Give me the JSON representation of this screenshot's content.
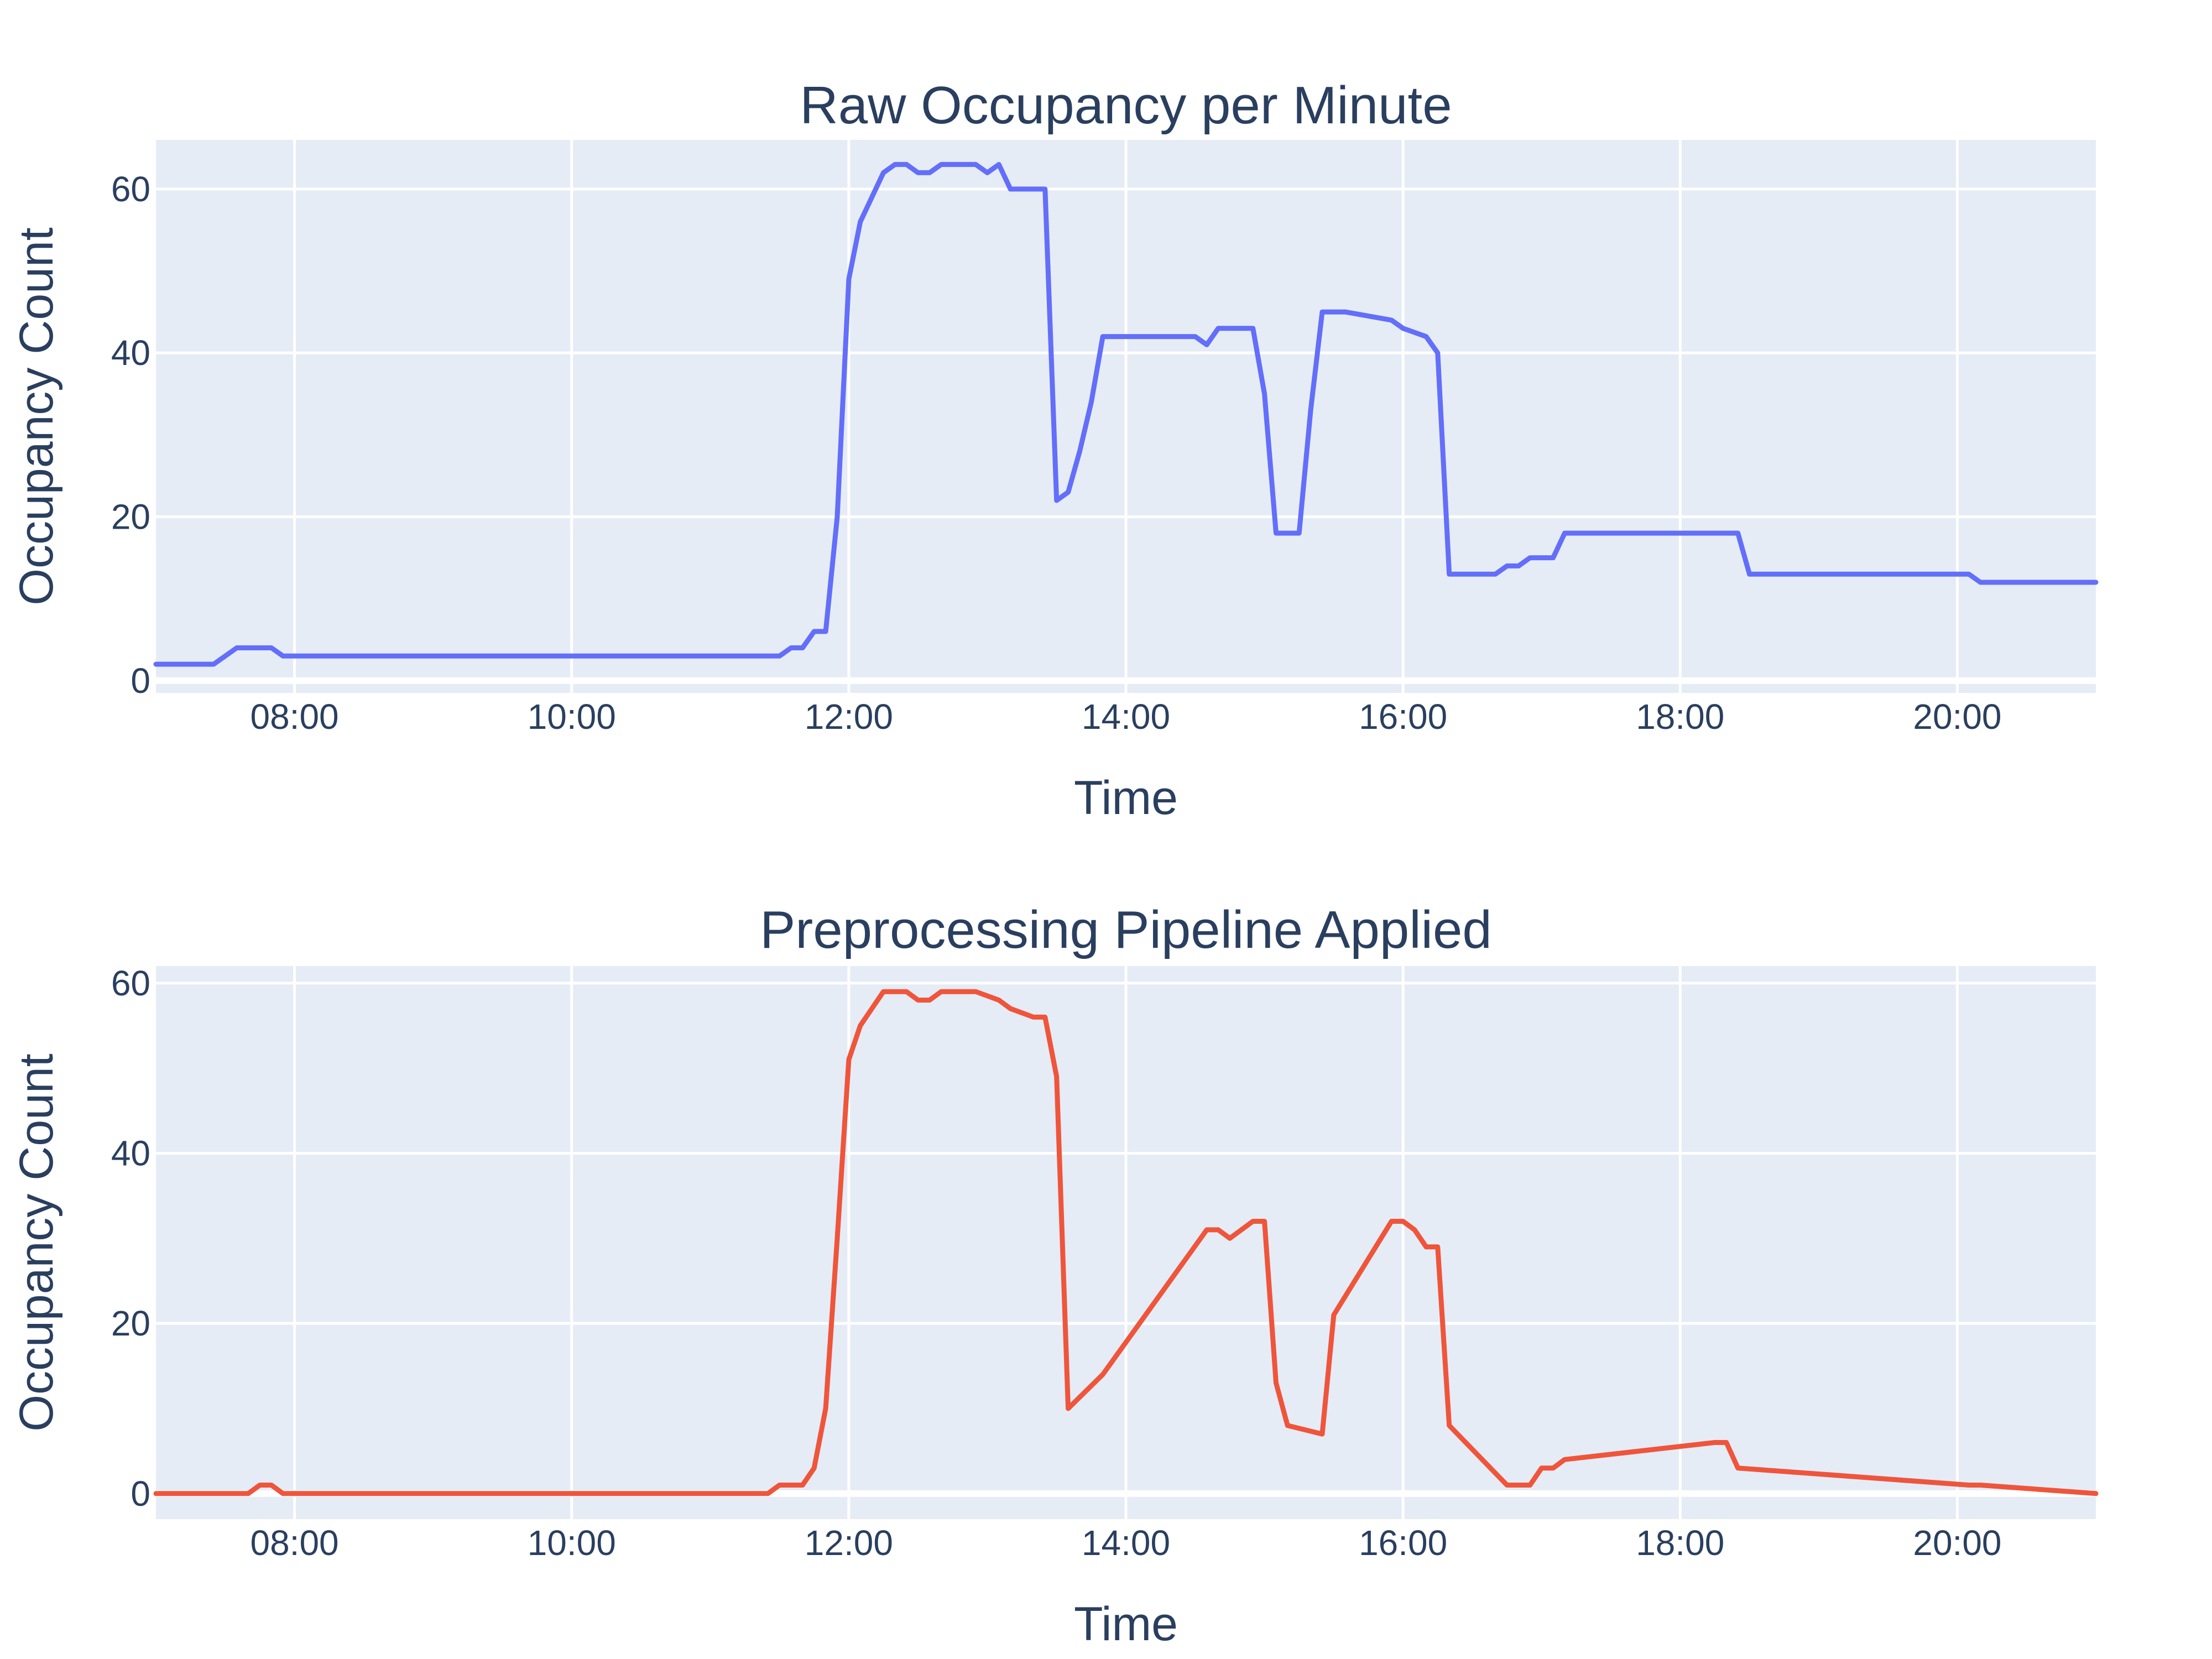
{
  "chart_data": [
    {
      "type": "line",
      "title": "Raw Occupancy per Minute",
      "xlabel": "Time",
      "ylabel": "Occupancy Count",
      "x_tick_labels": [
        "08:00",
        "10:00",
        "12:00",
        "14:00",
        "16:00",
        "18:00",
        "20:00"
      ],
      "y_tick_labels": [
        "0",
        "20",
        "40",
        "60"
      ],
      "xlim": [
        "07:00",
        "21:00"
      ],
      "ylim": [
        -1.5,
        66
      ],
      "grid": true,
      "color": "#636efa",
      "series": [
        {
          "x": [
            "07:00",
            "07:25",
            "07:35",
            "07:50",
            "07:55",
            "11:30",
            "11:35",
            "11:40",
            "11:45",
            "11:50",
            "11:55",
            "12:00",
            "12:05",
            "12:10",
            "12:15",
            "12:20",
            "12:25",
            "12:30",
            "12:35",
            "12:40",
            "12:45",
            "12:50",
            "12:55",
            "13:00",
            "13:05",
            "13:10",
            "13:25",
            "13:30",
            "13:35",
            "13:40",
            "13:45",
            "13:50",
            "14:00",
            "14:30",
            "14:35",
            "14:40",
            "14:55",
            "15:00",
            "15:05",
            "15:15",
            "15:20",
            "15:25",
            "15:35",
            "15:55",
            "16:00",
            "16:10",
            "16:15",
            "16:20",
            "16:40",
            "16:45",
            "16:50",
            "16:55",
            "17:05",
            "17:10",
            "18:25",
            "18:30",
            "20:05",
            "20:10",
            "21:00"
          ],
          "y": [
            2,
            2,
            4,
            4,
            3,
            3,
            4,
            4,
            6,
            6,
            20,
            49,
            56,
            59,
            62,
            63,
            63,
            62,
            62,
            63,
            63,
            63,
            63,
            62,
            63,
            60,
            60,
            22,
            23,
            28,
            34,
            42,
            42,
            42,
            41,
            43,
            43,
            35,
            18,
            18,
            33,
            45,
            45,
            44,
            43,
            42,
            40,
            13,
            13,
            14,
            14,
            15,
            15,
            18,
            18,
            13,
            13,
            12,
            12
          ]
        }
      ]
    },
    {
      "type": "line",
      "title": "Preprocessing Pipeline Applied",
      "xlabel": "Time",
      "ylabel": "Occupancy Count",
      "x_tick_labels": [
        "08:00",
        "10:00",
        "12:00",
        "14:00",
        "16:00",
        "18:00",
        "20:00"
      ],
      "y_tick_labels": [
        "0",
        "20",
        "40",
        "60"
      ],
      "xlim": [
        "07:00",
        "21:00"
      ],
      "ylim": [
        -3,
        62
      ],
      "grid": true,
      "color": "#ef553b",
      "series": [
        {
          "x": [
            "07:00",
            "07:40",
            "07:45",
            "07:50",
            "07:55",
            "11:25",
            "11:30",
            "11:40",
            "11:45",
            "11:50",
            "11:55",
            "12:00",
            "12:05",
            "12:10",
            "12:15",
            "12:25",
            "12:30",
            "12:35",
            "12:40",
            "12:55",
            "13:05",
            "13:10",
            "13:20",
            "13:25",
            "13:30",
            "13:35",
            "13:50",
            "14:35",
            "14:40",
            "14:45",
            "14:55",
            "15:00",
            "15:05",
            "15:10",
            "15:25",
            "15:30",
            "15:55",
            "16:00",
            "16:05",
            "16:10",
            "16:15",
            "16:20",
            "16:45",
            "16:55",
            "17:00",
            "17:05",
            "17:10",
            "18:15",
            "18:20",
            "18:25",
            "20:05",
            "20:10",
            "21:00"
          ],
          "y": [
            0,
            0,
            1,
            1,
            0,
            0,
            1,
            1,
            3,
            10,
            30,
            51,
            55,
            57,
            59,
            59,
            58,
            58,
            59,
            59,
            58,
            57,
            56,
            56,
            49,
            10,
            14,
            31,
            31,
            30,
            32,
            32,
            13,
            8,
            7,
            21,
            32,
            32,
            31,
            29,
            29,
            8,
            1,
            1,
            3,
            3,
            4,
            6,
            6,
            3,
            1,
            1,
            0
          ]
        }
      ]
    }
  ]
}
